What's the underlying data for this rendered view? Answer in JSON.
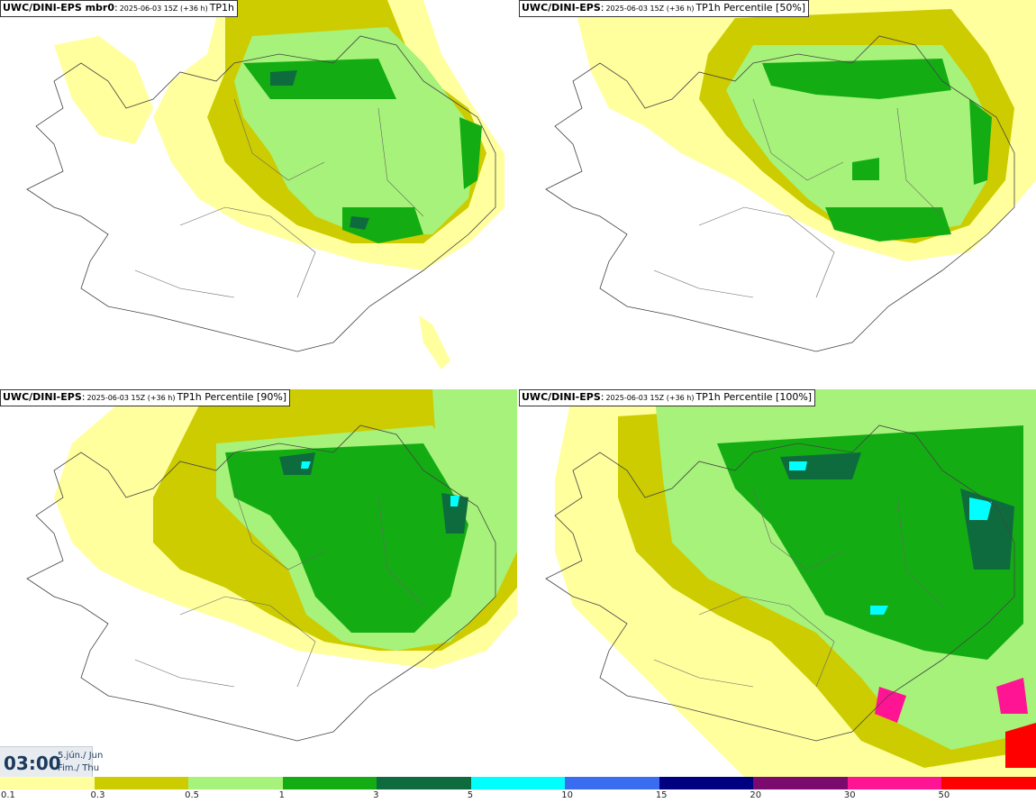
{
  "panels": [
    {
      "source": "UWC/DINI-EPS mbr0",
      "run": "2025-06-03 15Z (+36 h)",
      "field": "TP1h"
    },
    {
      "source": "UWC/DINI-EPS",
      "run": "2025-06-03 15Z (+36 h)",
      "field": "TP1h Percentile [50%]"
    },
    {
      "source": "UWC/DINI-EPS",
      "run": "2025-06-03 15Z (+36 h)",
      "field": "TP1h Percentile [90%]"
    },
    {
      "source": "UWC/DINI-EPS",
      "run": "2025-06-03 15Z (+36 h)",
      "field": "TP1h Percentile [100%]"
    }
  ],
  "valid_time": {
    "hour": "03:00",
    "date_line1": "5.jún./ Jun",
    "date_line2": "Fim./ Thu"
  },
  "legend": {
    "ticks": [
      "0.1",
      "0.3",
      "0.5",
      "1",
      "3",
      "5",
      "10",
      "15",
      "20",
      "30",
      "50"
    ],
    "colors": [
      "#ffff9e",
      "#cccc00",
      "#a7f27a",
      "#13ad13",
      "#0e6b3e",
      "#00ffff",
      "#3a6cf0",
      "#000080",
      "#7a0a6e",
      "#ff1493",
      "#ff0000"
    ]
  }
}
